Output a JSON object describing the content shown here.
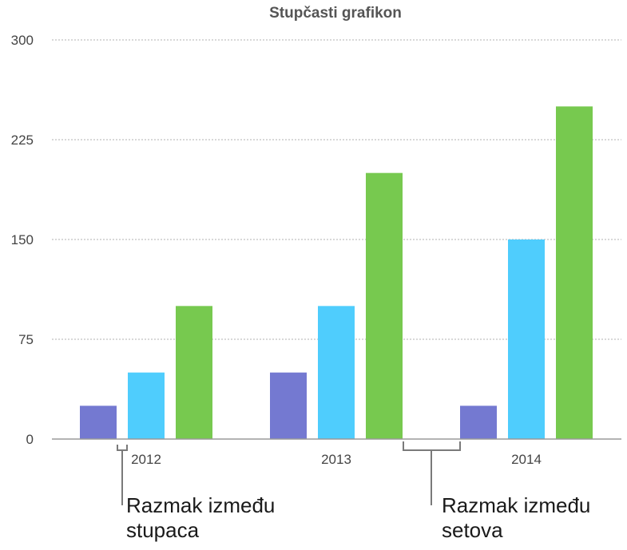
{
  "chart_data": {
    "type": "bar",
    "title": "Stupčasti grafikon",
    "categories": [
      "2012",
      "2013",
      "2014"
    ],
    "series": [
      {
        "values": [
          25,
          50,
          25
        ],
        "color": "#7479d1"
      },
      {
        "values": [
          50,
          100,
          150
        ],
        "color": "#4fcdfd"
      },
      {
        "values": [
          100,
          200,
          250
        ],
        "color": "#77c94f"
      }
    ],
    "ylim": [
      0,
      300
    ],
    "yticks": [
      "0",
      "75",
      "150",
      "225",
      "300"
    ],
    "xlabel": "",
    "ylabel": "",
    "grid": true,
    "annotations": [
      {
        "id": "column-gap",
        "line1": "Razmak između",
        "line2": "stupaca"
      },
      {
        "id": "set-gap",
        "line1": "Razmak između",
        "line2": "setova"
      }
    ]
  }
}
